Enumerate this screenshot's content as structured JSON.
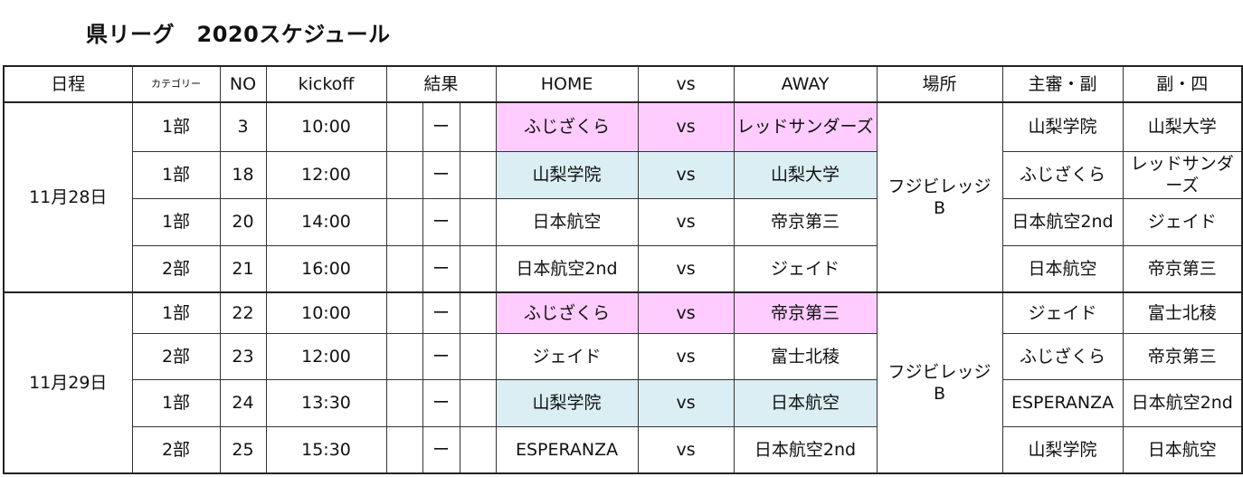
{
  "title": "県リーグ　2020スケジュール",
  "headers": {
    "date": "日程",
    "category": "カテゴリー",
    "no": "NO",
    "kickoff": "kickoff",
    "result": "結果",
    "home": "HOME",
    "vs": "vs",
    "away": "AWAY",
    "venue": "場所",
    "referee_main": "主審・副",
    "referee_sub": "副・四"
  },
  "colors": {
    "pink_highlight": "#ffccff",
    "blue_highlight": "#daeef3"
  },
  "days": [
    {
      "date": "11月28日",
      "venue": "フジビレッジB",
      "matches": [
        {
          "category": "1部",
          "no": "3",
          "kickoff": "10:00",
          "result": "ー",
          "home": "ふじざくら",
          "vs": "vs",
          "away": "レッドサンダーズ",
          "ref1": "山梨学院",
          "ref2": "山梨大学",
          "highlight": "pink"
        },
        {
          "category": "1部",
          "no": "18",
          "kickoff": "12:00",
          "result": "ー",
          "home": "山梨学院",
          "vs": "vs",
          "away": "山梨大学",
          "ref1": "ふじざくら",
          "ref2": "レッドサンダーズ",
          "highlight": "blue"
        },
        {
          "category": "1部",
          "no": "20",
          "kickoff": "14:00",
          "result": "ー",
          "home": "日本航空",
          "vs": "vs",
          "away": "帝京第三",
          "ref1": "日本航空2nd",
          "ref2": "ジェイド",
          "highlight": ""
        },
        {
          "category": "2部",
          "no": "21",
          "kickoff": "16:00",
          "result": "ー",
          "home": "日本航空2nd",
          "vs": "vs",
          "away": "ジェイド",
          "ref1": "日本航空",
          "ref2": "帝京第三",
          "highlight": ""
        }
      ]
    },
    {
      "date": "11月29日",
      "venue": "フジビレッジB",
      "matches": [
        {
          "category": "1部",
          "no": "22",
          "kickoff": "10:00",
          "result": "ー",
          "home": "ふじざくら",
          "vs": "vs",
          "away": "帝京第三",
          "ref1": "ジェイド",
          "ref2": "富士北稜",
          "highlight": "pink"
        },
        {
          "category": "2部",
          "no": "23",
          "kickoff": "12:00",
          "result": "ー",
          "home": "ジェイド",
          "vs": "vs",
          "away": "富士北稜",
          "ref1": "ふじざくら",
          "ref2": "帝京第三",
          "highlight": ""
        },
        {
          "category": "1部",
          "no": "24",
          "kickoff": "13:30",
          "result": "ー",
          "home": "山梨学院",
          "vs": "vs",
          "away": "日本航空",
          "ref1": "ESPERANZA",
          "ref2": "日本航空2nd",
          "highlight": "blue"
        },
        {
          "category": "2部",
          "no": "25",
          "kickoff": "15:30",
          "result": "ー",
          "home": "ESPERANZA",
          "vs": "vs",
          "away": "日本航空2nd",
          "ref1": "山梨学院",
          "ref2": "日本航空",
          "highlight": ""
        }
      ]
    }
  ]
}
